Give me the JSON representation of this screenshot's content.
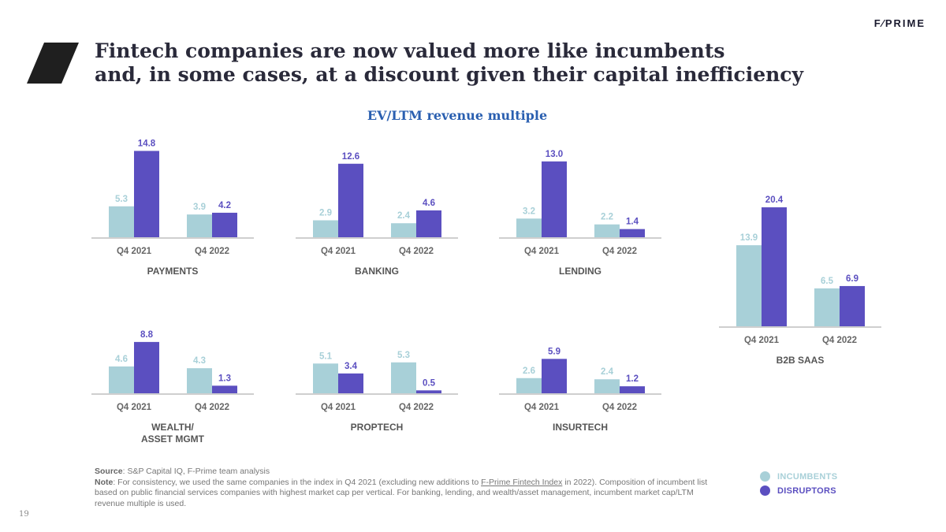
{
  "brand": "F⁄PRIME",
  "title_line1": "Fintech companies are now valued more like incumbents",
  "title_line2": "and, in some cases, at a discount given their capital inefficiency",
  "subtitle": "EV/LTM revenue multiple",
  "colors": {
    "incumbents": "#a8d0d8",
    "disruptors": "#5b4fc0",
    "axis": "#cfcfcf",
    "category": "#555555"
  },
  "chart_data": [
    {
      "type": "bar",
      "title": "PAYMENTS",
      "categories": [
        "Q4 2021",
        "Q4 2022"
      ],
      "series": [
        {
          "name": "INCUMBENTS",
          "values": [
            5.3,
            3.9
          ]
        },
        {
          "name": "DISRUPTORS",
          "values": [
            14.8,
            4.2
          ]
        }
      ]
    },
    {
      "type": "bar",
      "title": "BANKING",
      "categories": [
        "Q4 2021",
        "Q4 2022"
      ],
      "series": [
        {
          "name": "INCUMBENTS",
          "values": [
            2.9,
            2.4
          ]
        },
        {
          "name": "DISRUPTORS",
          "values": [
            12.6,
            4.6
          ]
        }
      ]
    },
    {
      "type": "bar",
      "title": "LENDING",
      "categories": [
        "Q4 2021",
        "Q4 2022"
      ],
      "series": [
        {
          "name": "INCUMBENTS",
          "values": [
            3.2,
            2.2
          ]
        },
        {
          "name": "DISRUPTORS",
          "values": [
            13.0,
            1.4
          ]
        }
      ]
    },
    {
      "type": "bar",
      "title": "WEALTH/\nASSET MGMT",
      "categories": [
        "Q4 2021",
        "Q4 2022"
      ],
      "series": [
        {
          "name": "INCUMBENTS",
          "values": [
            4.6,
            4.3
          ]
        },
        {
          "name": "DISRUPTORS",
          "values": [
            8.8,
            1.3
          ]
        }
      ]
    },
    {
      "type": "bar",
      "title": "PROPTECH",
      "categories": [
        "Q4 2021",
        "Q4 2022"
      ],
      "series": [
        {
          "name": "INCUMBENTS",
          "values": [
            5.1,
            5.3
          ]
        },
        {
          "name": "DISRUPTORS",
          "values": [
            3.4,
            0.5
          ]
        }
      ]
    },
    {
      "type": "bar",
      "title": "INSURTECH",
      "categories": [
        "Q4 2021",
        "Q4 2022"
      ],
      "series": [
        {
          "name": "INCUMBENTS",
          "values": [
            2.6,
            2.4
          ]
        },
        {
          "name": "DISRUPTORS",
          "values": [
            5.9,
            1.2
          ]
        }
      ]
    },
    {
      "type": "bar",
      "title": "B2B SAAS",
      "categories": [
        "Q4 2021",
        "Q4 2022"
      ],
      "series": [
        {
          "name": "INCUMBENTS",
          "values": [
            13.9,
            6.5
          ]
        },
        {
          "name": "DISRUPTORS",
          "values": [
            20.4,
            6.9
          ]
        }
      ]
    }
  ],
  "footnote": {
    "source_label": "Source",
    "source_text": ": S&P Capital IQ, F-Prime team analysis",
    "note_label": "Note",
    "note_text_1": ": For consistency, we used the same companies in the index in Q4 2021 (excluding new additions to ",
    "note_link": "F-Prime Fintech Index",
    "note_text_2": " in 2022). Composition of incumbent list based on public financial services companies with highest market cap per vertical. For banking, lending, and wealth/asset management, incumbent market cap/LTM revenue multiple is used."
  },
  "legend": [
    {
      "label": "INCUMBENTS",
      "color": "#a8d0d8"
    },
    {
      "label": "DISRUPTORS",
      "color": "#5b4fc0"
    }
  ],
  "page_number": "19"
}
